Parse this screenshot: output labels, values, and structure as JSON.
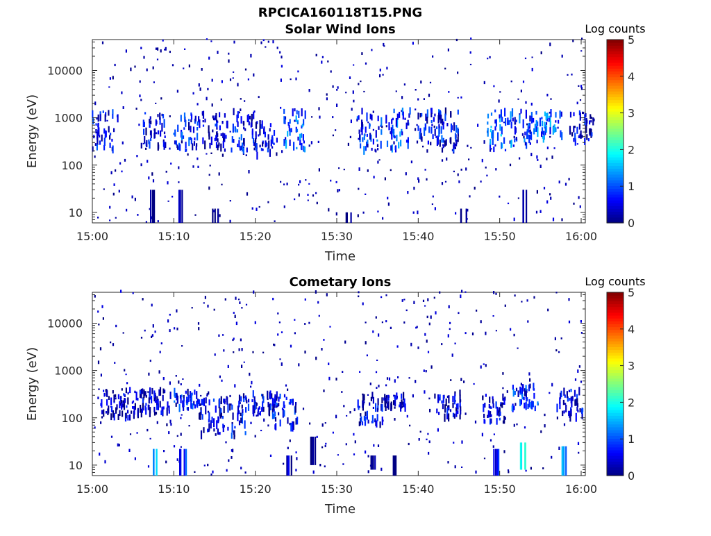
{
  "figure_title": "RPCICA160118T15.PNG",
  "chart_data": [
    {
      "type": "heatmap",
      "title": "Solar Wind Ions",
      "xlabel": "Time",
      "ylabel": "Energy (eV)",
      "x_tick_labels": [
        "15:00",
        "15:10",
        "15:20",
        "15:30",
        "15:40",
        "15:50",
        "16:00"
      ],
      "x_range": [
        "15:00",
        "16:00"
      ],
      "y_scale": "log",
      "y_tick_values": [
        10,
        100,
        1000,
        10000
      ],
      "y_tick_labels": [
        "10",
        "100",
        "1000",
        "10000"
      ],
      "y_range": [
        6,
        45000
      ],
      "colorbar": {
        "label": "Log counts",
        "range": [
          0,
          5
        ],
        "ticks": [
          "0",
          "1",
          "2",
          "3",
          "4",
          "5"
        ],
        "colormap": "jet"
      },
      "clusters": [
        {
          "t": 1.5,
          "e_range": [
            200,
            1400
          ],
          "level": 1.2
        },
        {
          "t": 7.5,
          "e_range": [
            220,
            1300
          ],
          "level": 1.1
        },
        {
          "t": 11.5,
          "e_range": [
            200,
            1300
          ],
          "level": 1.3
        },
        {
          "t": 15.0,
          "e_range": [
            220,
            1300
          ],
          "level": 1.0
        },
        {
          "t": 18.5,
          "e_range": [
            200,
            1400
          ],
          "level": 1.2
        },
        {
          "t": 21.0,
          "e_range": [
            150,
            900
          ],
          "level": 1.0
        },
        {
          "t": 24.5,
          "e_range": [
            200,
            1400
          ],
          "level": 1.6
        },
        {
          "t": 34.0,
          "e_range": [
            200,
            1500
          ],
          "level": 1.3
        },
        {
          "t": 37.5,
          "e_range": [
            200,
            1400
          ],
          "level": 1.5
        },
        {
          "t": 41.5,
          "e_range": [
            250,
            1400
          ],
          "level": 1.2
        },
        {
          "t": 43.5,
          "e_range": [
            200,
            1400
          ],
          "level": 1.1
        },
        {
          "t": 50.0,
          "e_range": [
            200,
            1400
          ],
          "level": 1.7
        },
        {
          "t": 53.0,
          "e_range": [
            250,
            1400
          ],
          "level": 1.4
        },
        {
          "t": 56.0,
          "e_range": [
            350,
            1300
          ],
          "level": 1.6
        },
        {
          "t": 60.0,
          "e_range": [
            300,
            1300
          ],
          "level": 1.0
        }
      ],
      "low_energy_bursts": [
        {
          "t": 7.5,
          "e_range": [
            6,
            30
          ],
          "level": 0.3
        },
        {
          "t": 11.0,
          "e_range": [
            6,
            30
          ],
          "level": 0.5
        },
        {
          "t": 15.0,
          "e_range": [
            6,
            12
          ],
          "level": 0.2
        },
        {
          "t": 31.5,
          "e_range": [
            6,
            10
          ],
          "level": 0.2
        },
        {
          "t": 45.5,
          "e_range": [
            6,
            12
          ],
          "level": 0.2
        },
        {
          "t": 53.0,
          "e_range": [
            6,
            30
          ],
          "level": 0.4
        }
      ]
    },
    {
      "type": "heatmap",
      "title": "Cometary Ions",
      "xlabel": "Time",
      "ylabel": "Energy (eV)",
      "x_tick_labels": [
        "15:00",
        "15:10",
        "15:20",
        "15:30",
        "15:40",
        "15:50",
        "16:00"
      ],
      "x_range": [
        "15:00",
        "16:00"
      ],
      "y_scale": "log",
      "y_tick_values": [
        10,
        100,
        1000,
        10000
      ],
      "y_tick_labels": [
        "10",
        "100",
        "1000",
        "10000"
      ],
      "y_range": [
        6,
        45000
      ],
      "colorbar": {
        "label": "Log counts",
        "range": [
          0,
          5
        ],
        "ticks": [
          "0",
          "1",
          "2",
          "3",
          "4",
          "5"
        ],
        "colormap": "jet"
      },
      "clusters": [
        {
          "t": 2.5,
          "e_range": [
            100,
            400
          ],
          "level": 0.9
        },
        {
          "t": 5.0,
          "e_range": [
            100,
            400
          ],
          "level": 0.9
        },
        {
          "t": 8.0,
          "e_range": [
            120,
            400
          ],
          "level": 0.9
        },
        {
          "t": 11.5,
          "e_range": [
            150,
            350
          ],
          "level": 1.2
        },
        {
          "t": 14.5,
          "e_range": [
            40,
            250
          ],
          "level": 1.0
        },
        {
          "t": 17.5,
          "e_range": [
            40,
            300
          ],
          "level": 1.1
        },
        {
          "t": 21.0,
          "e_range": [
            120,
            350
          ],
          "level": 1.0
        },
        {
          "t": 23.5,
          "e_range": [
            60,
            300
          ],
          "level": 1.2
        },
        {
          "t": 34.0,
          "e_range": [
            70,
            300
          ],
          "level": 1.0
        },
        {
          "t": 37.0,
          "e_range": [
            150,
            300
          ],
          "level": 0.8
        },
        {
          "t": 43.5,
          "e_range": [
            100,
            350
          ],
          "level": 0.9
        },
        {
          "t": 49.0,
          "e_range": [
            80,
            300
          ],
          "level": 1.0
        },
        {
          "t": 53.0,
          "e_range": [
            150,
            500
          ],
          "level": 1.3
        },
        {
          "t": 58.5,
          "e_range": [
            100,
            400
          ],
          "level": 1.0
        }
      ],
      "low_energy_bursts": [
        {
          "t": 7.5,
          "e_range": [
            6,
            22
          ],
          "level": 2.0
        },
        {
          "t": 11.0,
          "e_range": [
            6,
            22
          ],
          "level": 1.2
        },
        {
          "t": 24.0,
          "e_range": [
            6,
            16
          ],
          "level": 0.6
        },
        {
          "t": 27.0,
          "e_range": [
            10,
            40
          ],
          "level": 0.6
        },
        {
          "t": 34.5,
          "e_range": [
            8,
            16
          ],
          "level": 0.5
        },
        {
          "t": 36.8,
          "e_range": [
            6,
            16
          ],
          "level": 0.3
        },
        {
          "t": 49.5,
          "e_range": [
            6,
            22
          ],
          "level": 1.1
        },
        {
          "t": 52.8,
          "e_range": [
            8,
            30
          ],
          "level": 2.3
        },
        {
          "t": 58.0,
          "e_range": [
            6,
            25
          ],
          "level": 1.8
        }
      ]
    }
  ]
}
